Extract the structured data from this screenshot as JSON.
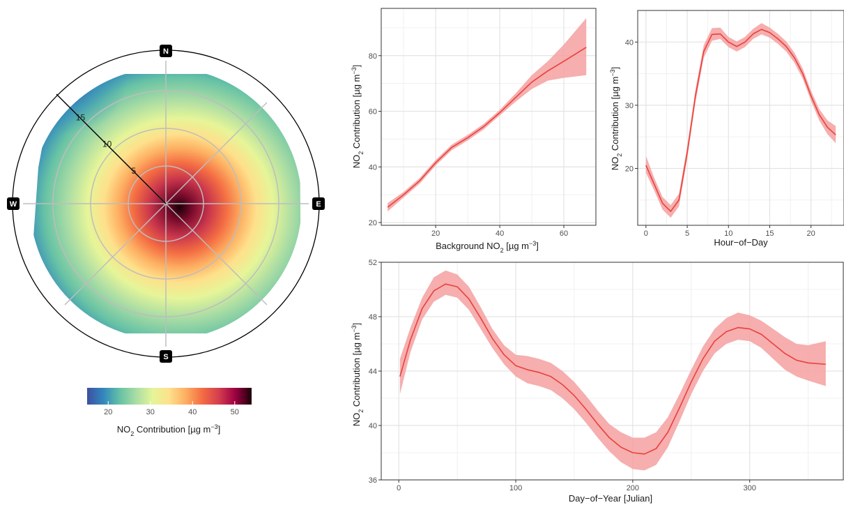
{
  "chart_data": [
    {
      "type": "heatmap",
      "subtype": "polar-plot",
      "compass": [
        "N",
        "E",
        "S",
        "W"
      ],
      "radial_ticks": [
        5,
        10,
        15
      ],
      "radial_max": 15,
      "colorbar": {
        "ticks": [
          20,
          30,
          40,
          50
        ],
        "range": [
          15,
          54
        ],
        "label_pre": "NO",
        "label_sub": "2",
        "label_main": " Contribution [µg m",
        "label_sup": "−3",
        "label_end": "]",
        "colors": [
          "#3e4fa0",
          "#3288bd",
          "#66c2a5",
          "#abdda4",
          "#e6f598",
          "#fee08b",
          "#fdae61",
          "#f46d43",
          "#d53e4f",
          "#9e0142",
          "#1a0008"
        ]
      },
      "peak_direction": "south-east",
      "peak_value": 54
    },
    {
      "type": "line",
      "xlabel_pre": "Background NO",
      "xlabel_sub": "2",
      "xlabel_post": " [µg m",
      "xlabel_sup": "−3",
      "xlabel_end": "]",
      "ylabel_pre": "NO",
      "ylabel_sub": "2",
      "ylabel_main": " Contribution [µg m",
      "ylabel_sup": "−3",
      "ylabel_end": "]",
      "xlim": [
        3,
        70
      ],
      "ylim": [
        19,
        97
      ],
      "xticks": [
        20,
        40,
        60
      ],
      "yticks": [
        20,
        40,
        60,
        80
      ],
      "x": [
        5,
        10,
        15,
        20,
        25,
        30,
        35,
        40,
        45,
        50,
        55,
        60,
        67
      ],
      "y": [
        25.5,
        30,
        35,
        41.5,
        47,
        50.5,
        54.5,
        59.5,
        65,
        70.5,
        74.5,
        78,
        83
      ],
      "lower": [
        24,
        29,
        34,
        40.5,
        46,
        49.5,
        53.5,
        58.5,
        63.5,
        68,
        71,
        72,
        73
      ],
      "upper": [
        27,
        31,
        36,
        42.5,
        48,
        51.5,
        55.5,
        60.5,
        66.5,
        73,
        78,
        84,
        93.5
      ]
    },
    {
      "type": "line",
      "xlabel": "Hour−of−Day",
      "ylabel_pre": "NO",
      "ylabel_sub": "2",
      "ylabel_main": " Contribution [µg m",
      "ylabel_sup": "−3",
      "ylabel_end": "]",
      "xlim": [
        -1,
        24
      ],
      "ylim": [
        11,
        45
      ],
      "xticks": [
        0,
        5,
        10,
        15,
        20
      ],
      "yticks": [
        20,
        30,
        40
      ],
      "x": [
        0,
        1,
        2,
        3,
        4,
        5,
        6,
        7,
        8,
        9,
        10,
        11,
        12,
        13,
        14,
        15,
        16,
        17,
        18,
        19,
        20,
        21,
        22,
        23
      ],
      "y": [
        20.5,
        17.5,
        14.5,
        13.2,
        15,
        22.5,
        31.5,
        38.5,
        41.2,
        41.3,
        40,
        39.3,
        40,
        41.3,
        42,
        41.5,
        40.5,
        39.3,
        37.5,
        35,
        31.5,
        28.5,
        26.5,
        25.3
      ],
      "lower": [
        19.3,
        16.5,
        13.5,
        12.2,
        14,
        21.5,
        30.5,
        37.5,
        40.2,
        40.5,
        39.2,
        38.5,
        39.2,
        40.5,
        41.2,
        40.7,
        39.7,
        38.5,
        36.7,
        34.2,
        30.7,
        27.6,
        25.4,
        24
      ],
      "upper": [
        22,
        18.5,
        15.5,
        14.2,
        16,
        23.5,
        32.5,
        39.5,
        42.2,
        42.3,
        40.8,
        40.1,
        40.8,
        42.1,
        43,
        42.3,
        41.3,
        40.1,
        38.3,
        35.8,
        32.3,
        29.4,
        27.6,
        26.7
      ]
    },
    {
      "type": "line",
      "xlabel": "Day−of−Year [Julian]",
      "ylabel_pre": "NO",
      "ylabel_sub": "2",
      "ylabel_main": " Contribution [µg m",
      "ylabel_sup": "−3",
      "ylabel_end": "]",
      "xlim": [
        -15,
        380
      ],
      "ylim": [
        36,
        52
      ],
      "xticks": [
        0,
        100,
        200,
        300
      ],
      "yticks": [
        36,
        40,
        44,
        48,
        52
      ],
      "x": [
        1,
        10,
        20,
        30,
        40,
        50,
        60,
        70,
        80,
        90,
        100,
        110,
        120,
        130,
        140,
        150,
        160,
        170,
        180,
        190,
        200,
        210,
        220,
        230,
        240,
        250,
        260,
        270,
        280,
        290,
        300,
        310,
        320,
        330,
        340,
        350,
        365
      ],
      "y": [
        43.6,
        46.3,
        48.6,
        49.9,
        50.4,
        50.2,
        49.3,
        47.9,
        46.4,
        45.2,
        44.4,
        44.1,
        43.9,
        43.6,
        43,
        42.2,
        41.2,
        40.1,
        39.1,
        38.4,
        38,
        37.9,
        38.3,
        39.5,
        41.3,
        43.2,
        44.9,
        46.2,
        46.9,
        47.2,
        47.1,
        46.7,
        46,
        45.3,
        44.8,
        44.6,
        44.5
      ],
      "lower": [
        42.3,
        45.4,
        47.8,
        49.1,
        49.6,
        49.4,
        48.5,
        47.1,
        45.7,
        44.5,
        43.6,
        43.1,
        42.9,
        42.6,
        42,
        41.2,
        40.2,
        39.1,
        38.1,
        37.3,
        36.8,
        36.7,
        37.1,
        38.4,
        40.3,
        42.3,
        44,
        45.3,
        46,
        46.3,
        46.2,
        45.7,
        44.9,
        44.1,
        43.6,
        43.3,
        42.9
      ],
      "upper": [
        44.9,
        47.2,
        49.4,
        50.9,
        51.4,
        51.1,
        50.2,
        48.7,
        47.1,
        45.9,
        45.2,
        45.1,
        44.9,
        44.6,
        44,
        43.2,
        42.2,
        41.1,
        40.1,
        39.5,
        39.1,
        39.1,
        39.5,
        40.6,
        42.3,
        44.1,
        45.8,
        47.1,
        47.9,
        48.3,
        48.1,
        47.7,
        47.1,
        46.5,
        46,
        45.9,
        46.2
      ]
    }
  ]
}
